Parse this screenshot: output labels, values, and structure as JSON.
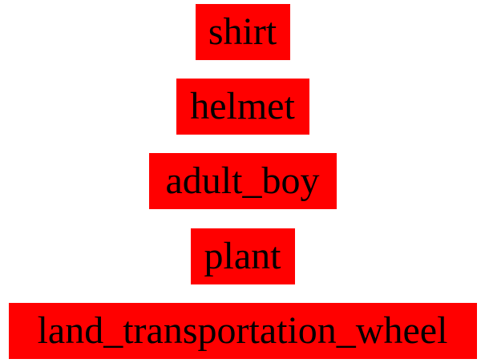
{
  "labels": [
    {
      "text": "shirt",
      "color": "#ff0000"
    },
    {
      "text": "helmet",
      "color": "#ff0000"
    },
    {
      "text": "adult_boy",
      "color": "#ff0000"
    },
    {
      "text": "plant",
      "color": "#ff0000"
    },
    {
      "text": "land_transportation_wheel",
      "color": "#ff0000"
    }
  ]
}
